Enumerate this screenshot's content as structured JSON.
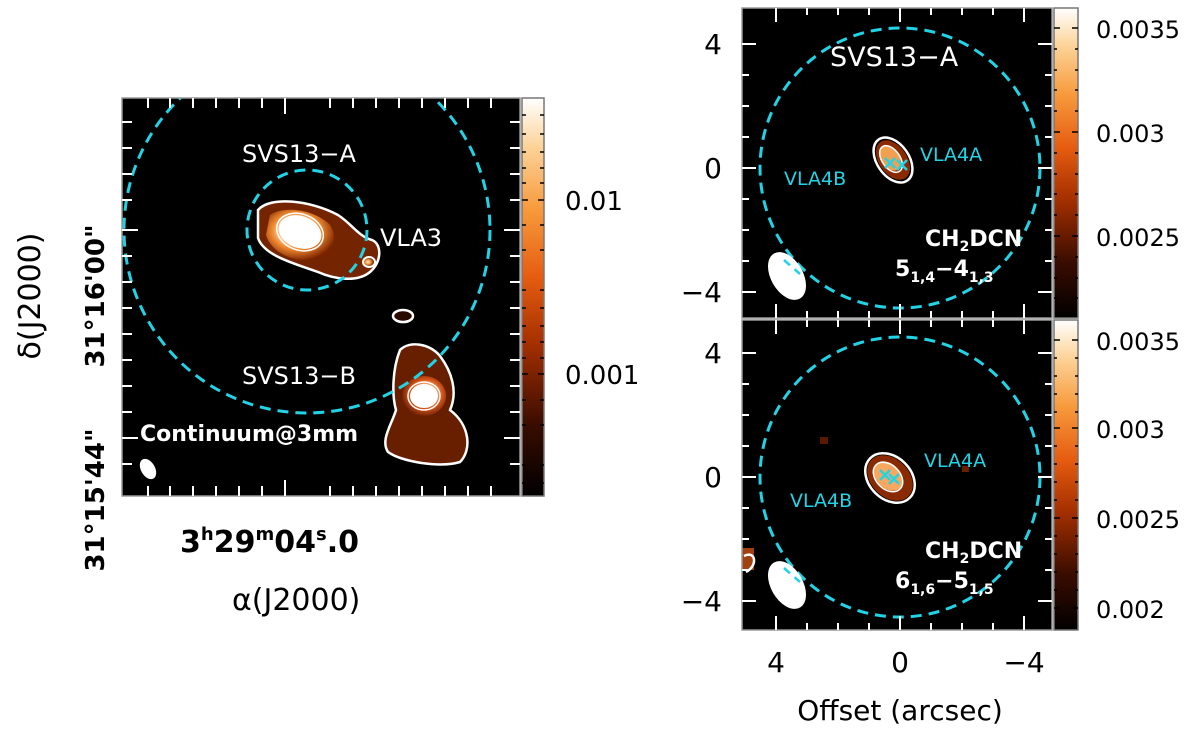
{
  "colors": {
    "cyan": "#22d3e6",
    "white": "#ffffff",
    "black": "#000000",
    "emission": "#e05a10"
  },
  "chart_data": [
    {
      "type": "heatmap",
      "panel": "continuum",
      "title": "Continuum@3mm",
      "xlabel": "α(J2000)",
      "ylabel": "δ(J2000)",
      "x_ticklabel": {
        "base": "3",
        "h": "h",
        "mid": "29",
        "m": "m",
        "sec": "04",
        "s": "s",
        "frac": ".0"
      },
      "y_ticklabels": [
        "31°16'00\"",
        "31°15'44\""
      ],
      "colorbar": {
        "scale": "log",
        "tick_values": [
          0.001,
          0.01
        ],
        "ticks": [
          "0.001",
          "0.01"
        ]
      },
      "sources": [
        "SVS13−A",
        "SVS13−B",
        "VLA3"
      ]
    },
    {
      "type": "heatmap",
      "panel": "top-right",
      "title": "SVS13−A",
      "molecule": {
        "p1": "CH",
        "s1": "2",
        "p2": "DCN"
      },
      "transition": {
        "a": "5",
        "as": "1,4",
        "dash": "−",
        "b": "4",
        "bs": "1,3"
      },
      "xlim": [
        5.2,
        -5.2
      ],
      "ylim": [
        -5.2,
        5.2
      ],
      "y_ticks": [
        4,
        0,
        -4
      ],
      "y_ticklabels": [
        "4",
        "0",
        "−4"
      ],
      "colorbar": {
        "min": 0.0021,
        "max": 0.0036,
        "tick_values": [
          0.0025,
          0.003,
          0.0035
        ],
        "ticks": [
          "0.0025",
          "0.003",
          "0.0035"
        ]
      },
      "sources": [
        "VLA4A",
        "VLA4B"
      ]
    },
    {
      "type": "heatmap",
      "panel": "bottom-right",
      "molecule": {
        "p1": "CH",
        "s1": "2",
        "p2": "DCN"
      },
      "transition": {
        "a": "6",
        "as": "1,6",
        "dash": "−",
        "b": "5",
        "bs": "1,5"
      },
      "xlim": [
        5.2,
        -5.2
      ],
      "ylim": [
        -5.2,
        5.2
      ],
      "x_ticks": [
        4,
        0,
        -4
      ],
      "x_ticklabels": [
        "4",
        "0",
        "−4"
      ],
      "y_ticks": [
        4,
        0,
        -4
      ],
      "y_ticklabels": [
        "4",
        "0",
        "−4"
      ],
      "xlabel": "Offset (arcsec)",
      "colorbar": {
        "min": 0.0019,
        "max": 0.0036,
        "tick_values": [
          0.002,
          0.0025,
          0.003,
          0.0035
        ],
        "ticks": [
          "0.002",
          "0.0025",
          "0.003",
          "0.0035"
        ]
      },
      "sources": [
        "VLA4A",
        "VLA4B"
      ]
    }
  ]
}
